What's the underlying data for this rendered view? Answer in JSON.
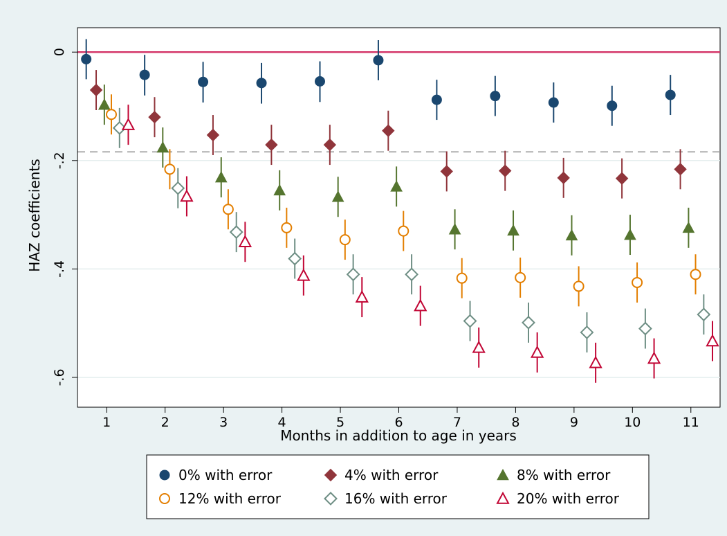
{
  "chart_data": {
    "type": "scatter",
    "title": "",
    "xlabel": "Months in addition to age in years",
    "ylabel": "HAZ coefficients",
    "x_ticks": [
      1,
      2,
      3,
      4,
      5,
      6,
      7,
      8,
      9,
      10,
      11
    ],
    "y_ticks": [
      0,
      -0.2,
      -0.4,
      -0.6
    ],
    "y_tick_labels": [
      "0",
      "-.2",
      "-.4",
      "-.6"
    ],
    "xlim": [
      0.5,
      11.5
    ],
    "ylim": [
      -0.655,
      0.045
    ],
    "reference_lines": [
      {
        "y": 0,
        "style": "solid",
        "color": "#d4386a"
      },
      {
        "y": -0.184,
        "style": "dashed",
        "color": "#999999"
      }
    ],
    "grid": true,
    "legend_position": "bottom",
    "series": [
      {
        "name": "0% with error",
        "marker": "circle-filled",
        "color": "#1a476f",
        "x_offset": -0.35,
        "values": [
          -0.013,
          -0.042,
          -0.055,
          -0.057,
          -0.054,
          -0.015,
          -0.088,
          -0.081,
          -0.093,
          -0.099,
          -0.079
        ],
        "ci_low": [
          -0.05,
          -0.08,
          -0.093,
          -0.095,
          -0.092,
          -0.052,
          -0.125,
          -0.118,
          -0.13,
          -0.136,
          -0.116
        ],
        "ci_high": [
          0.024,
          -0.005,
          -0.018,
          -0.02,
          -0.017,
          0.022,
          -0.051,
          -0.044,
          -0.056,
          -0.062,
          -0.042
        ]
      },
      {
        "name": "4% with error",
        "marker": "diamond-filled",
        "color": "#90353b",
        "x_offset": -0.18,
        "values": [
          -0.07,
          -0.12,
          -0.153,
          -0.171,
          -0.171,
          -0.145,
          -0.22,
          -0.219,
          -0.232,
          -0.233,
          -0.216
        ],
        "ci_low": [
          -0.107,
          -0.157,
          -0.19,
          -0.208,
          -0.208,
          -0.182,
          -0.257,
          -0.256,
          -0.269,
          -0.27,
          -0.253
        ],
        "ci_high": [
          -0.033,
          -0.083,
          -0.116,
          -0.134,
          -0.134,
          -0.108,
          -0.183,
          -0.182,
          -0.195,
          -0.196,
          -0.179
        ]
      },
      {
        "name": "8% with error",
        "marker": "triangle-filled",
        "color": "#55752f",
        "x_offset": -0.04,
        "values": [
          -0.097,
          -0.176,
          -0.231,
          -0.255,
          -0.267,
          -0.248,
          -0.327,
          -0.329,
          -0.338,
          -0.337,
          -0.324
        ],
        "ci_low": [
          -0.134,
          -0.213,
          -0.268,
          -0.292,
          -0.304,
          -0.285,
          -0.364,
          -0.366,
          -0.375,
          -0.374,
          -0.361
        ],
        "ci_high": [
          -0.06,
          -0.139,
          -0.194,
          -0.218,
          -0.23,
          -0.211,
          -0.29,
          -0.292,
          -0.301,
          -0.3,
          -0.287
        ]
      },
      {
        "name": "12% with error",
        "marker": "circle-hollow",
        "color": "#e37e00",
        "x_offset": 0.08,
        "values": [
          -0.115,
          -0.216,
          -0.29,
          -0.324,
          -0.346,
          -0.33,
          -0.417,
          -0.416,
          -0.432,
          -0.425,
          -0.41
        ],
        "ci_low": [
          -0.152,
          -0.253,
          -0.327,
          -0.361,
          -0.383,
          -0.367,
          -0.454,
          -0.453,
          -0.469,
          -0.462,
          -0.447
        ],
        "ci_high": [
          -0.078,
          -0.179,
          -0.253,
          -0.287,
          -0.309,
          -0.293,
          -0.38,
          -0.379,
          -0.395,
          -0.388,
          -0.373
        ]
      },
      {
        "name": "16% with error",
        "marker": "diamond-hollow",
        "color": "#6e8e84",
        "x_offset": 0.22,
        "values": [
          -0.14,
          -0.251,
          -0.332,
          -0.381,
          -0.41,
          -0.41,
          -0.496,
          -0.499,
          -0.517,
          -0.51,
          -0.484
        ],
        "ci_low": [
          -0.177,
          -0.288,
          -0.369,
          -0.418,
          -0.447,
          -0.447,
          -0.533,
          -0.536,
          -0.554,
          -0.547,
          -0.521
        ],
        "ci_high": [
          -0.103,
          -0.214,
          -0.295,
          -0.344,
          -0.373,
          -0.373,
          -0.459,
          -0.462,
          -0.48,
          -0.473,
          -0.447
        ]
      },
      {
        "name": "20% with error",
        "marker": "triangle-hollow",
        "color": "#c10534",
        "x_offset": 0.37,
        "values": [
          -0.134,
          -0.266,
          -0.35,
          -0.412,
          -0.452,
          -0.468,
          -0.545,
          -0.554,
          -0.573,
          -0.565,
          -0.533
        ],
        "ci_low": [
          -0.171,
          -0.303,
          -0.387,
          -0.449,
          -0.489,
          -0.505,
          -0.582,
          -0.591,
          -0.61,
          -0.602,
          -0.57
        ],
        "ci_high": [
          -0.097,
          -0.229,
          -0.313,
          -0.375,
          -0.415,
          -0.431,
          -0.508,
          -0.517,
          -0.536,
          -0.528,
          -0.496
        ]
      }
    ]
  }
}
